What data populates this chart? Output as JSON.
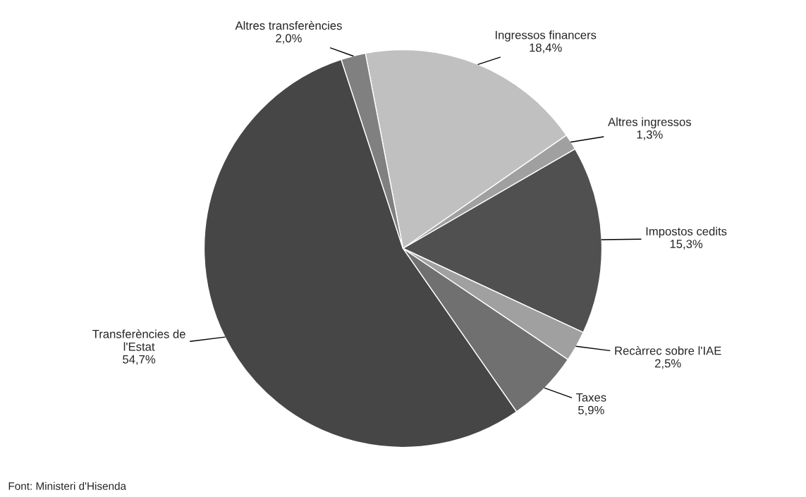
{
  "chart_data": {
    "type": "pie",
    "categories": [
      "Ingressos financers",
      "Altres ingressos",
      "Impostos cedits",
      "Recàrrec sobre l'IAE",
      "Taxes",
      "Transferències de l'Estat",
      "Altres transferències"
    ],
    "values": [
      18.4,
      1.3,
      15.3,
      2.5,
      5.9,
      54.7,
      2.0
    ],
    "value_labels": [
      "18,4%",
      "1,3%",
      "15,3%",
      "2,5%",
      "5,9%",
      "54,7%",
      "2,0%"
    ],
    "colors": [
      "#c0c0c0",
      "#a0a0a0",
      "#505050",
      "#a0a0a0",
      "#707070",
      "#464646",
      "#808080"
    ],
    "annotations": [
      "Font: Ministeri d'Hisenda"
    ]
  }
}
